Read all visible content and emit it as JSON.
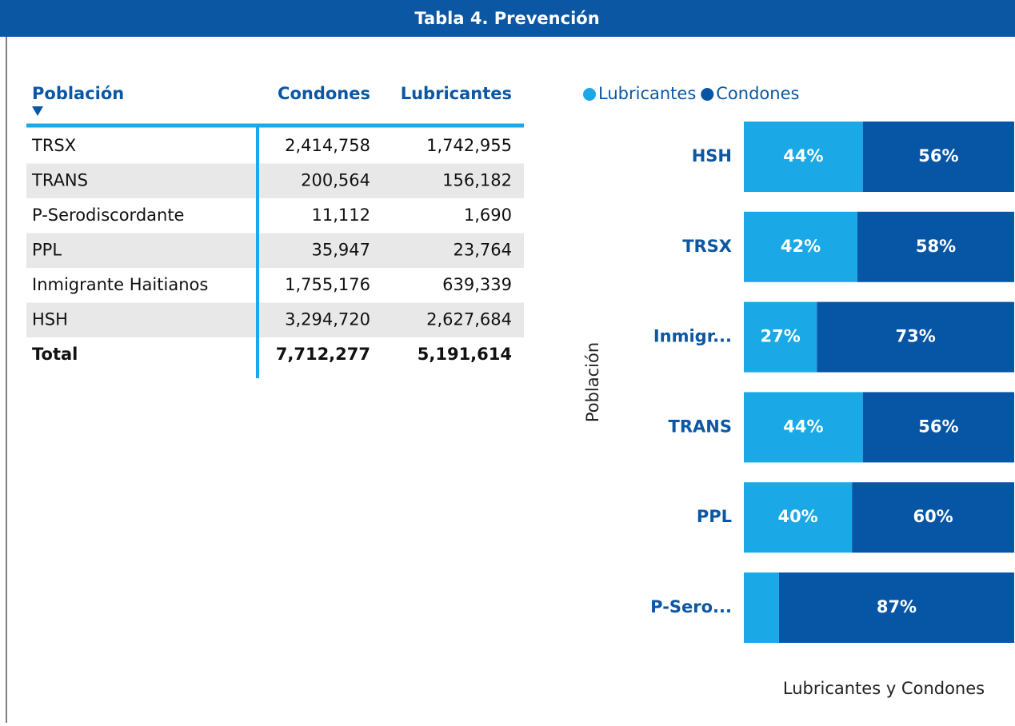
{
  "header": {
    "title": "Tabla 4. Prevención"
  },
  "table": {
    "columns": [
      "Población",
      "Condones",
      "Lubricantes"
    ],
    "rows": [
      [
        "TRSX",
        "2,414,758",
        "1,742,955"
      ],
      [
        "TRANS",
        "200,564",
        "156,182"
      ],
      [
        "P-Serodiscordante",
        "11,112",
        "1,690"
      ],
      [
        "PPL",
        "35,947",
        "23,764"
      ],
      [
        "Inmigrante Haitianos",
        "1,755,176",
        "639,339"
      ],
      [
        "HSH",
        "3,294,720",
        "2,627,684"
      ]
    ],
    "total": [
      "Total",
      "7,712,277",
      "5,191,614"
    ]
  },
  "chart_data": {
    "type": "bar",
    "orientation": "horizontal",
    "stacked": true,
    "categories": [
      "HSH",
      "TRSX",
      "Inmigr...",
      "TRANS",
      "PPL",
      "P-Sero..."
    ],
    "series": [
      {
        "name": "Lubricantes",
        "color": "#1aa9e6",
        "values": [
          44,
          42,
          27,
          44,
          40,
          13
        ],
        "value_labels": [
          "44%",
          "42%",
          "27%",
          "44%",
          "40%",
          null
        ]
      },
      {
        "name": "Condones",
        "color": "#0756a6",
        "values": [
          56,
          58,
          73,
          56,
          60,
          87
        ],
        "value_labels": [
          "56%",
          "58%",
          "73%",
          "56%",
          "60%",
          "87%"
        ]
      }
    ],
    "xlim": [
      0,
      100
    ],
    "y_label": "Población",
    "x_label": "Lubricantes y Condones",
    "legend": "top"
  }
}
